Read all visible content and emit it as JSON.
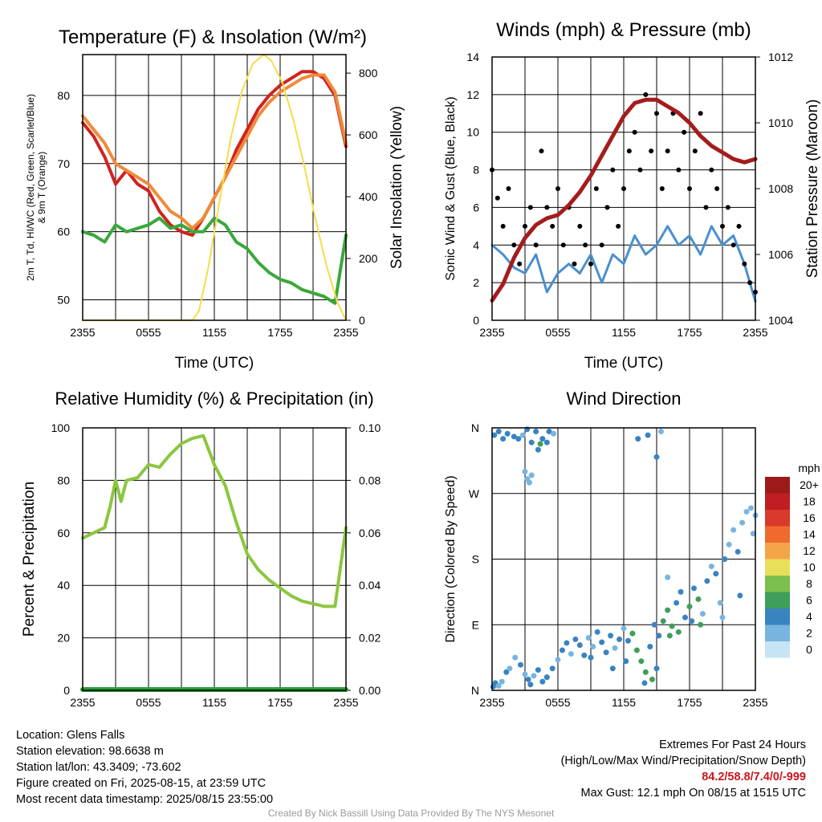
{
  "charts": [
    {
      "id": "temperature",
      "title": "Temperature (F) & Insolation (W/m²)",
      "ylabel_left": [
        "2m T, T",
        "d",
        ", HI/WC (Red, Green, Scarlet/Blue)",
        "& 9m T (Orange)"
      ],
      "ylabel_right": "Solar Insolation (Yellow)",
      "xlabel": "Time (UTC)"
    },
    {
      "id": "winds",
      "title": "Winds (mph) & Pressure (mb)",
      "ylabel_left": "Sonic Wind & Gust (Blue, Black)",
      "ylabel_right": "Station Pressure (Maroon)",
      "xlabel": "Time (UTC)"
    },
    {
      "id": "humidity",
      "title": "Relative Humidity (%) & Precipitation (in)",
      "ylabel_left": "Percent & Precipitation",
      "ylabel_right": "",
      "xlabel": ""
    },
    {
      "id": "direction",
      "title": "Wind Direction",
      "ylabel_left": "Direction (Colored By Speed)",
      "ylabel_right": "",
      "xlabel": ""
    }
  ],
  "legend": {
    "unit": "mph",
    "labels": [
      "20+",
      "18",
      "16",
      "14",
      "12",
      "10",
      "8",
      "6",
      "4",
      "2",
      "0"
    ],
    "colors": [
      "#9b1b1b",
      "#c01e22",
      "#d93a2b",
      "#ee6a2e",
      "#f6a44a",
      "#e9e05a",
      "#7cbf4c",
      "#3f9e5a",
      "#3a83c1",
      "#79b4e0",
      "#c6e4f6"
    ]
  },
  "chart_data": [
    {
      "type": "line",
      "title": "Temperature (F) & Insolation (W/m²)",
      "x_ticks": [
        "2355",
        "0555",
        "1155",
        "1755",
        "2355"
      ],
      "xlabel": "Time (UTC)",
      "ylim": [
        47,
        86
      ],
      "y_ticks": [
        50,
        60,
        70,
        80
      ],
      "y2lim": [
        0,
        860
      ],
      "y2_ticks": [
        0,
        200,
        400,
        600,
        800
      ],
      "series": [
        {
          "label": "2m T",
          "color": "#d0231f",
          "axis": "left",
          "x": [
            0,
            1,
            2,
            3,
            4,
            5,
            6,
            7,
            8,
            9,
            10,
            11,
            12,
            13,
            14,
            15,
            16,
            17,
            18,
            19,
            20,
            21,
            22,
            23,
            24
          ],
          "y": [
            76,
            74,
            71,
            67,
            69,
            67,
            66,
            63,
            61,
            60,
            59.5,
            62,
            65,
            68,
            72,
            75,
            78,
            80,
            81.5,
            82.5,
            83.5,
            83.5,
            82.5,
            80,
            72.5
          ]
        },
        {
          "label": "9m T",
          "color": "#f08a3a",
          "axis": "left",
          "x": [
            0,
            1,
            2,
            3,
            4,
            5,
            6,
            7,
            8,
            9,
            10,
            11,
            12,
            13,
            14,
            15,
            16,
            17,
            18,
            19,
            20,
            21,
            22,
            23,
            24
          ],
          "y": [
            77,
            75,
            73,
            70,
            69,
            68,
            67,
            65,
            63,
            62,
            60.5,
            62,
            65,
            68,
            71,
            74,
            77,
            79,
            80.5,
            81.5,
            82.5,
            83,
            83,
            80.5,
            73
          ]
        },
        {
          "label": "Td",
          "color": "#3aa83a",
          "axis": "left",
          "x": [
            0,
            1,
            2,
            3,
            4,
            5,
            6,
            7,
            8,
            9,
            10,
            11,
            12,
            13,
            14,
            15,
            16,
            17,
            18,
            19,
            20,
            21,
            22,
            23,
            24
          ],
          "y": [
            60,
            59.5,
            58.5,
            61,
            60,
            60.5,
            61,
            62,
            60.5,
            61,
            60,
            60,
            62,
            61,
            58.5,
            57.5,
            55.5,
            54,
            53,
            52.5,
            51.5,
            51,
            50.5,
            49.5,
            59.5
          ]
        },
        {
          "label": "Solar Insolation",
          "color": "#f5dc4a",
          "axis": "right",
          "x": [
            0,
            10,
            10.6,
            11.5,
            12.5,
            13.5,
            14.5,
            15.5,
            16.5,
            17.2,
            18.2,
            19.2,
            20.2,
            21.2,
            22.2,
            23.2,
            24
          ],
          "y": [
            0,
            0,
            30,
            180,
            390,
            590,
            740,
            830,
            860,
            840,
            770,
            650,
            500,
            330,
            180,
            60,
            0
          ]
        }
      ]
    },
    {
      "type": "line",
      "title": "Winds (mph) & Pressure (mb)",
      "x_ticks": [
        "2355",
        "0555",
        "1155",
        "1755",
        "2355"
      ],
      "xlabel": "Time (UTC)",
      "ylim": [
        0,
        14
      ],
      "y_ticks": [
        0,
        2,
        4,
        6,
        8,
        10,
        12,
        14
      ],
      "y2lim": [
        1004,
        1012
      ],
      "y2_ticks": [
        1004,
        1006,
        1008,
        1010,
        1012
      ],
      "series": [
        {
          "label": "Station Pressure",
          "color": "#a51c1c",
          "axis": "right",
          "x": [
            0,
            1,
            2,
            3,
            4,
            5,
            6,
            7,
            8,
            9,
            10,
            11,
            12,
            13,
            14,
            15,
            16,
            17,
            18,
            19,
            20,
            21,
            22,
            23,
            24
          ],
          "y": [
            1004.6,
            1005.1,
            1005.9,
            1006.5,
            1006.9,
            1007.1,
            1007.2,
            1007.5,
            1007.9,
            1008.4,
            1009.0,
            1009.6,
            1010.2,
            1010.6,
            1010.7,
            1010.7,
            1010.5,
            1010.3,
            1010.0,
            1009.6,
            1009.3,
            1009.1,
            1008.9,
            1008.8,
            1008.9
          ]
        },
        {
          "label": "Sonic Wind",
          "color": "#4a8fd0",
          "axis": "left",
          "x": [
            0,
            1,
            2,
            3,
            4,
            5,
            6,
            7,
            8,
            9,
            10,
            11,
            12,
            13,
            14,
            15,
            16,
            17,
            18,
            19,
            20,
            21,
            22,
            23,
            24
          ],
          "y": [
            4.0,
            3.5,
            2.8,
            2.5,
            3.5,
            1.5,
            2.5,
            3.0,
            2.5,
            3.5,
            2.0,
            3.5,
            3.0,
            4.5,
            3.5,
            4.0,
            5.0,
            4.0,
            4.5,
            3.5,
            5.0,
            4.0,
            4.5,
            3.0,
            1.0
          ]
        },
        {
          "label": "Gust",
          "color": "#000000",
          "axis": "left",
          "x": [
            0,
            0.5,
            1,
            1.5,
            2,
            2.5,
            3,
            3.5,
            4,
            4.5,
            5,
            5.5,
            6,
            6.5,
            7,
            7.5,
            8,
            8.5,
            9,
            9.5,
            10,
            10.5,
            11,
            11.5,
            12,
            12.5,
            13,
            13.5,
            14,
            14.5,
            15,
            15.5,
            16,
            16.5,
            17,
            17.5,
            18,
            18.5,
            19,
            19.5,
            20,
            20.5,
            21,
            21.5,
            22,
            22.5,
            23,
            23.5,
            24
          ],
          "y": [
            8,
            6.5,
            5,
            7,
            4,
            3,
            5,
            6,
            4,
            9,
            6,
            5,
            7,
            4,
            6,
            3,
            5,
            4,
            3,
            7,
            4,
            6,
            8,
            5,
            7,
            9,
            10,
            8,
            12,
            9,
            11,
            7,
            9,
            11,
            8,
            10,
            7,
            9,
            11,
            6,
            8,
            7,
            5,
            6,
            4,
            5,
            3,
            2,
            1.5
          ]
        }
      ]
    },
    {
      "type": "line",
      "title": "Relative Humidity (%) & Precipitation (in)",
      "x_ticks": [
        "2355",
        "0555",
        "1155",
        "1755",
        "2355"
      ],
      "ylim": [
        0,
        100
      ],
      "y_ticks": [
        0,
        20,
        40,
        60,
        80,
        100
      ],
      "y2lim": [
        0,
        0.1
      ],
      "y2_ticks": [
        "0.00",
        "0.02",
        "0.04",
        "0.06",
        "0.08",
        "0.10"
      ],
      "series": [
        {
          "label": "Relative Humidity",
          "color": "#8cc63f",
          "axis": "left",
          "x": [
            0,
            1,
            2,
            2.5,
            3,
            3.5,
            4,
            5,
            6,
            7,
            8,
            9,
            10,
            11,
            12,
            13,
            14,
            15,
            16,
            17,
            18,
            19,
            20,
            21,
            22,
            23,
            24
          ],
          "y": [
            58,
            60,
            62,
            70,
            80,
            72,
            80,
            81,
            86,
            85,
            90,
            94,
            96,
            97,
            86,
            78,
            64,
            52,
            46,
            42,
            39,
            36,
            34,
            33,
            32,
            32,
            62
          ]
        },
        {
          "label": "Precipitation",
          "color": "#2e9b3a",
          "axis": "right",
          "x": [
            0,
            24
          ],
          "y": [
            0,
            0
          ]
        }
      ]
    },
    {
      "type": "scatter",
      "title": "Wind Direction",
      "x_ticks": [
        "2355",
        "0555",
        "1155",
        "1755",
        "2355"
      ],
      "y_ticks": [
        "N",
        "E",
        "S",
        "W",
        "N"
      ],
      "ylim": [
        0,
        360
      ],
      "points": [
        [
          0.2,
          350,
          3
        ],
        [
          0.6,
          355,
          4
        ],
        [
          1.0,
          345,
          4
        ],
        [
          1.4,
          352,
          3
        ],
        [
          2.0,
          348,
          3
        ],
        [
          2.4,
          345,
          4
        ],
        [
          2.8,
          350,
          2
        ],
        [
          3.2,
          358,
          4
        ],
        [
          3.6,
          340,
          3
        ],
        [
          4.0,
          355,
          4
        ],
        [
          4.2,
          330,
          4
        ],
        [
          4.4,
          338,
          6
        ],
        [
          4.6,
          345,
          3
        ],
        [
          5.0,
          340,
          4
        ],
        [
          5.2,
          355,
          4
        ],
        [
          5.6,
          352,
          2
        ],
        [
          3.0,
          300,
          2
        ],
        [
          3.2,
          290,
          1
        ],
        [
          3.4,
          285,
          2
        ],
        [
          3.6,
          295,
          2
        ],
        [
          0.1,
          5,
          3
        ],
        [
          0.3,
          10,
          4
        ],
        [
          0.6,
          6,
          2
        ],
        [
          0.9,
          12,
          2
        ],
        [
          1.3,
          25,
          3
        ],
        [
          1.6,
          30,
          2
        ],
        [
          2.1,
          45,
          2
        ],
        [
          2.6,
          35,
          3
        ],
        [
          3.0,
          22,
          2
        ],
        [
          3.3,
          15,
          4
        ],
        [
          3.5,
          8,
          3
        ],
        [
          3.8,
          20,
          2
        ],
        [
          4.2,
          28,
          3
        ],
        [
          4.6,
          12,
          3
        ],
        [
          5.0,
          18,
          4
        ],
        [
          5.5,
          30,
          3
        ],
        [
          6.0,
          42,
          2
        ],
        [
          6.4,
          55,
          3
        ],
        [
          6.8,
          65,
          4
        ],
        [
          7.2,
          50,
          2
        ],
        [
          7.6,
          70,
          4
        ],
        [
          8.0,
          62,
          3
        ],
        [
          8.4,
          48,
          4
        ],
        [
          8.8,
          72,
          2
        ],
        [
          9.2,
          60,
          2
        ],
        [
          9.6,
          80,
          4
        ],
        [
          10.0,
          66,
          3
        ],
        [
          10.4,
          52,
          4
        ],
        [
          10.8,
          75,
          3
        ],
        [
          11.2,
          58,
          2
        ],
        [
          11.6,
          70,
          4
        ],
        [
          12.0,
          85,
          2
        ],
        [
          12.4,
          68,
          4
        ],
        [
          12.8,
          78,
          6
        ],
        [
          13.2,
          55,
          6
        ],
        [
          13.6,
          40,
          6
        ],
        [
          14.0,
          25,
          6
        ],
        [
          14.4,
          60,
          4
        ],
        [
          14.8,
          90,
          3
        ],
        [
          15.2,
          75,
          4
        ],
        [
          15.6,
          95,
          5
        ],
        [
          16.0,
          110,
          6
        ],
        [
          16.4,
          88,
          6
        ],
        [
          16.8,
          120,
          4
        ],
        [
          17.2,
          135,
          3
        ],
        [
          17.6,
          100,
          4
        ],
        [
          18.0,
          115,
          5
        ],
        [
          18.4,
          140,
          4
        ],
        [
          18.8,
          125,
          6
        ],
        [
          19.2,
          105,
          2
        ],
        [
          19.6,
          150,
          3
        ],
        [
          20.0,
          170,
          2
        ],
        [
          20.4,
          160,
          3
        ],
        [
          20.8,
          120,
          2
        ],
        [
          21.2,
          180,
          4
        ],
        [
          21.6,
          200,
          1
        ],
        [
          22.0,
          220,
          2
        ],
        [
          22.4,
          190,
          3
        ],
        [
          22.8,
          230,
          2
        ],
        [
          23.2,
          245,
          1
        ],
        [
          23.6,
          250,
          2
        ],
        [
          23.8,
          215,
          1
        ],
        [
          24.0,
          240,
          2
        ],
        [
          15.0,
          30,
          4
        ],
        [
          14.6,
          15,
          6
        ],
        [
          13.9,
          10,
          4
        ],
        [
          12.2,
          40,
          3
        ],
        [
          11.0,
          30,
          4
        ],
        [
          9.0,
          45,
          3
        ],
        [
          17.0,
          80,
          6
        ],
        [
          18.2,
          95,
          4
        ],
        [
          19.0,
          90,
          5
        ],
        [
          16.2,
          75,
          6
        ],
        [
          21.0,
          100,
          2
        ],
        [
          22.6,
          130,
          3
        ],
        [
          13.3,
          345,
          3
        ],
        [
          14.2,
          350,
          4
        ],
        [
          15.0,
          320,
          3
        ],
        [
          15.4,
          355,
          2
        ],
        [
          16.0,
          155,
          2
        ]
      ]
    }
  ],
  "footer": {
    "left": [
      "Location: Glens Falls",
      "Station elevation: 98.6638 m",
      "Station lat/lon: 43.3409; -73.602",
      "Figure created on Fri, 2025-08-15, at 23:59 UTC",
      "Most recent data timestamp: 2025/08/15 23:55:00"
    ],
    "right_title": "Extremes For Past 24 Hours",
    "right_subtitle": "(High/Low/Max Wind/Precipitation/Snow Depth)",
    "extremes": "84.2/58.8/7.4/0/-999",
    "max_gust": "Max Gust: 12.1 mph On 08/15 at 1515 UTC",
    "credit": "Created By Nick Bassill Using Data Provided By The NYS Mesonet"
  }
}
